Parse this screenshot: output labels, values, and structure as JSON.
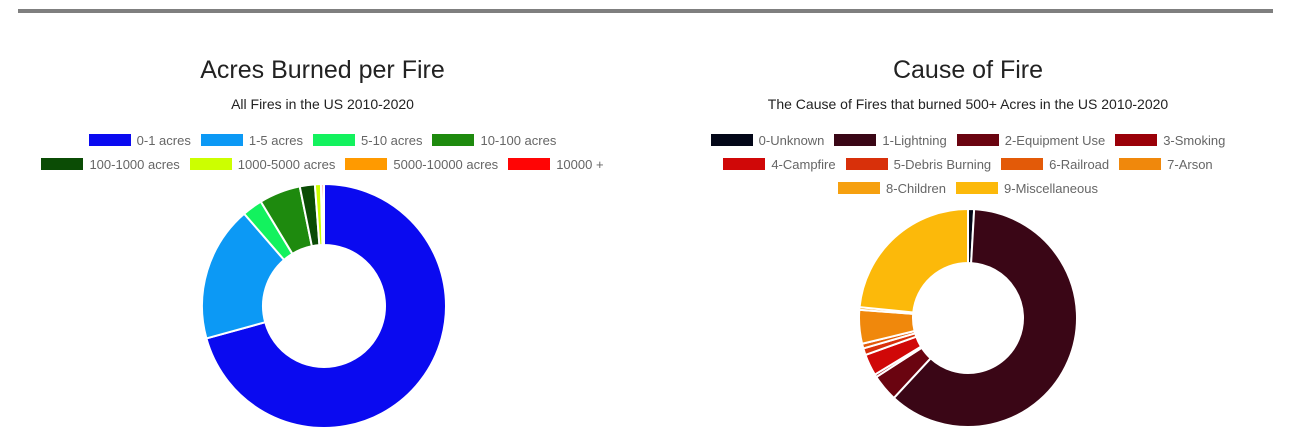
{
  "charts": [
    {
      "type": "pie",
      "title": "Acres Burned per Fire",
      "subtitle": "All Fires in the US 2010-2020",
      "legend_position": "top",
      "categories": [
        "0-1 acres",
        "1-5 acres",
        "5-10 acres",
        "10-100 acres",
        "100-1000 acres",
        "1000-5000 acres",
        "5000-10000 acres",
        "10000 +"
      ],
      "values": [
        71.0,
        18.0,
        2.7,
        5.5,
        2.0,
        0.8,
        0.1,
        0.3
      ],
      "colors": [
        "#0a0af0",
        "#0c99f5",
        "#13f25e",
        "#1e8a0e",
        "#0b4c05",
        "#ccff00",
        "#ff9a00",
        "#ff0505"
      ]
    },
    {
      "type": "pie",
      "title": "Cause of Fire",
      "subtitle": "The Cause of Fires that burned 500+ Acres in the US 2010-2020",
      "legend_position": "top",
      "categories": [
        "0-Unknown",
        "1-Lightning",
        "2-Equipment Use",
        "3-Smoking",
        "4-Campfire",
        "5-Debris Burning",
        "6-Railroad",
        "7-Arson",
        "8-Children",
        "9-Miscellaneous"
      ],
      "values": [
        0.9,
        61.0,
        4.0,
        0.4,
        3.2,
        1.0,
        0.7,
        5.0,
        0.4,
        23.4
      ],
      "colors": [
        "#030718",
        "#3a0616",
        "#6a0410",
        "#9a0008",
        "#d00808",
        "#d8300a",
        "#e35a08",
        "#f0880c",
        "#f6a010",
        "#fcb90a"
      ]
    }
  ]
}
